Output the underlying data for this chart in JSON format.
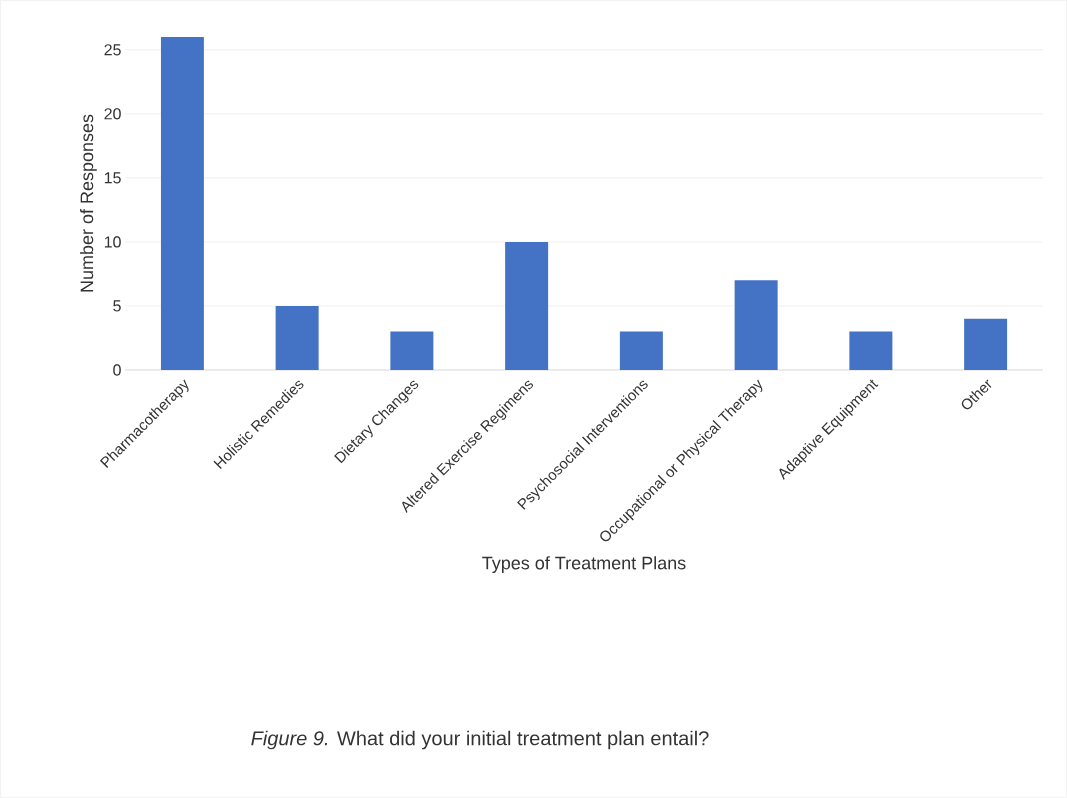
{
  "chart_data": {
    "type": "bar",
    "xlabel": "Types of Treatment Plans",
    "ylabel": "Number of Responses",
    "categories": [
      "Pharmacotherapy",
      "Holistic Remedies",
      "Dietary Changes",
      "Altered Exercise Regimens",
      "Psychosocial Interventions",
      "Occupational or Physical Therapy",
      "Adaptive Equipment",
      "Other"
    ],
    "values": [
      26,
      5,
      3,
      10,
      3,
      7,
      3,
      4
    ],
    "color": "#4472c4",
    "ylim": [
      0,
      26
    ],
    "yticks": [
      0,
      5,
      10,
      15,
      20,
      25
    ],
    "grid": "y",
    "annotations": [
      "*Figure 9.* What did your initial treatment plan entail?"
    ]
  }
}
